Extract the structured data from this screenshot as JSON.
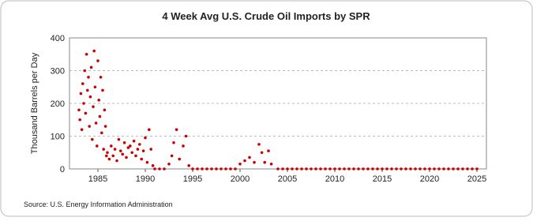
{
  "chart_data": {
    "type": "scatter",
    "title": "4 Week Avg U.S. Crude Oil Imports by SPR",
    "y_label": "Thousand Barrels per Day",
    "source": "Source: U.S. Energy Information Administration",
    "color": "#cc0000",
    "grid": true,
    "xlim": [
      1982,
      2026
    ],
    "ylim": [
      0,
      400
    ],
    "xticks": [
      1985,
      1990,
      1995,
      2000,
      2005,
      2010,
      2015,
      2020,
      2025
    ],
    "yticks": [
      0,
      100,
      200,
      300,
      400
    ],
    "x": [
      1983.0,
      1983.1,
      1983.2,
      1983.3,
      1983.4,
      1983.5,
      1983.6,
      1983.7,
      1983.8,
      1983.9,
      1984.0,
      1984.1,
      1984.2,
      1984.3,
      1984.4,
      1984.5,
      1984.6,
      1984.7,
      1984.8,
      1984.9,
      1985.0,
      1985.1,
      1985.2,
      1985.3,
      1985.4,
      1985.5,
      1985.6,
      1985.7,
      1985.8,
      1985.9,
      1986.0,
      1986.2,
      1986.4,
      1986.6,
      1986.8,
      1987.0,
      1987.2,
      1987.4,
      1987.6,
      1987.8,
      1988.0,
      1988.2,
      1988.4,
      1988.6,
      1988.8,
      1989.0,
      1989.2,
      1989.4,
      1989.6,
      1989.8,
      1990.0,
      1990.2,
      1990.4,
      1990.6,
      1990.8,
      1991.0,
      1991.5,
      1992.0,
      1992.5,
      1992.8,
      1993.0,
      1993.3,
      1993.6,
      1994.0,
      1994.3,
      1994.6,
      1995.0,
      1995.5,
      1996.0,
      1996.5,
      1997.0,
      1997.5,
      1998.0,
      1998.5,
      1999.0,
      1999.5,
      2000.0,
      2000.5,
      2001.0,
      2001.5,
      2002.0,
      2002.3,
      2002.6,
      2003.0,
      2003.3,
      2004.0,
      2004.5,
      2005.0,
      2005.5,
      2006.0,
      2006.5,
      2007.0,
      2007.5,
      2008.0,
      2008.5,
      2009.0,
      2009.5,
      2010.0,
      2010.5,
      2011.0,
      2011.5,
      2012.0,
      2012.5,
      2013.0,
      2013.5,
      2014.0,
      2014.5,
      2015.0,
      2015.5,
      2016.0,
      2016.5,
      2017.0,
      2017.5,
      2018.0,
      2018.5,
      2019.0,
      2019.5,
      2020.0,
      2020.5,
      2021.0,
      2021.5,
      2022.0,
      2022.5,
      2023.0,
      2023.5,
      2024.0,
      2024.5,
      2025.0
    ],
    "values": [
      180,
      150,
      230,
      120,
      260,
      200,
      300,
      170,
      350,
      240,
      280,
      130,
      220,
      310,
      90,
      190,
      360,
      250,
      140,
      70,
      330,
      210,
      160,
      280,
      110,
      240,
      60,
      180,
      130,
      40,
      50,
      30,
      70,
      40,
      60,
      25,
      90,
      55,
      45,
      80,
      35,
      65,
      70,
      50,
      85,
      40,
      60,
      75,
      30,
      55,
      95,
      20,
      120,
      60,
      10,
      0,
      0,
      0,
      15,
      40,
      80,
      120,
      30,
      70,
      100,
      10,
      0,
      0,
      0,
      0,
      0,
      0,
      0,
      0,
      0,
      0,
      15,
      25,
      35,
      20,
      75,
      50,
      20,
      55,
      15,
      0,
      0,
      0,
      0,
      0,
      0,
      0,
      0,
      0,
      0,
      0,
      0,
      0,
      0,
      0,
      0,
      0,
      0,
      0,
      0,
      0,
      0,
      0,
      0,
      0,
      0,
      0,
      0,
      0,
      0,
      0,
      0,
      0,
      0,
      0,
      0,
      0,
      0,
      0,
      0,
      0,
      0,
      0
    ]
  }
}
